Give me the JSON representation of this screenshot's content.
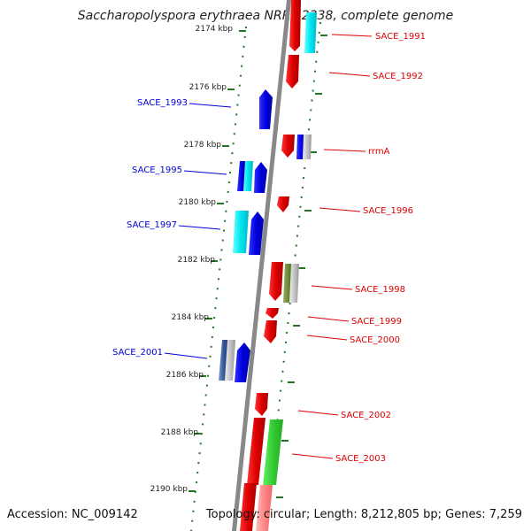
{
  "title": "Saccharopolyspora erythraea NRRL 2338, complete genome",
  "footer": {
    "accession": "Accession: NC_009142",
    "topology": "Topology: circular; Length: 8,212,805 bp; Genes: 7,259"
  },
  "colors": {
    "forward": "#dd0000",
    "reverse": "#0000dd",
    "backbone": "#888888",
    "ticks": "#227722",
    "cds_cyan": "#00e5ee",
    "cds_green": "#33cc33",
    "cds_olive": "#668833",
    "cds_pink": "#ff8888"
  },
  "kbp_marks": [
    "2174 kbp",
    "2176 kbp",
    "2178 kbp",
    "2180 kbp",
    "2182 kbp",
    "2184 kbp",
    "2186 kbp",
    "2188 kbp",
    "2190 kbp"
  ],
  "gene_labels": [
    {
      "name": "SACE_1991",
      "strand": "forward"
    },
    {
      "name": "SACE_1992",
      "strand": "forward"
    },
    {
      "name": "SACE_1993",
      "strand": "reverse"
    },
    {
      "name": "rrmA",
      "strand": "forward"
    },
    {
      "name": "SACE_1995",
      "strand": "reverse"
    },
    {
      "name": "SACE_1996",
      "strand": "forward"
    },
    {
      "name": "SACE_1997",
      "strand": "reverse"
    },
    {
      "name": "SACE_1998",
      "strand": "forward"
    },
    {
      "name": "SACE_1999",
      "strand": "forward"
    },
    {
      "name": "SACE_2000",
      "strand": "forward"
    },
    {
      "name": "SACE_2001",
      "strand": "reverse"
    },
    {
      "name": "SACE_2002",
      "strand": "forward"
    },
    {
      "name": "SACE_2003",
      "strand": "forward"
    }
  ]
}
